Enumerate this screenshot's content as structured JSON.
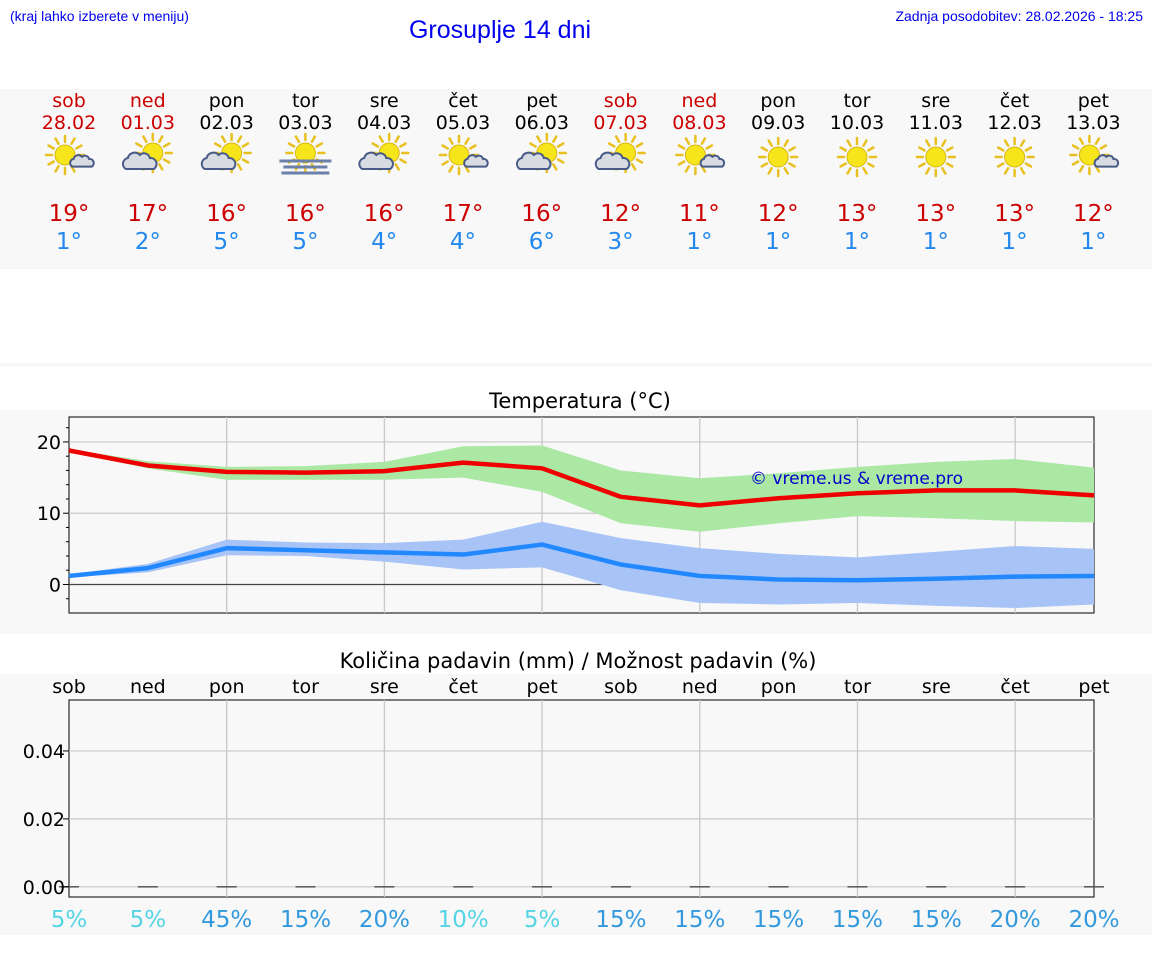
{
  "header": {
    "note": "(kraj lahko izberete v meniju)",
    "title": "Grosuplje 14 dni",
    "updated": "Zadnja posodobitev: 28.02.2026 - 18:25"
  },
  "colors": {
    "weekend": "#cc0000",
    "weekday": "#000000",
    "max_line": "#ee0000",
    "max_band": "#aae8a4",
    "min_line": "#2288ff",
    "min_band": "#a8c4f6",
    "pct_low": "#55d4e4",
    "pct_high": "#3399dd"
  },
  "forecast": [
    {
      "day": "sob",
      "date": "28.02",
      "weekend": true,
      "icon": "sun-cloud-icon",
      "max": "19°",
      "min": "1°"
    },
    {
      "day": "ned",
      "date": "01.03",
      "weekend": true,
      "icon": "cloud-sun-icon",
      "max": "17°",
      "min": "2°"
    },
    {
      "day": "pon",
      "date": "02.03",
      "weekend": false,
      "icon": "cloud-sun-icon",
      "max": "16°",
      "min": "5°"
    },
    {
      "day": "tor",
      "date": "03.03",
      "weekend": false,
      "icon": "fog-sun-icon",
      "max": "16°",
      "min": "5°"
    },
    {
      "day": "sre",
      "date": "04.03",
      "weekend": false,
      "icon": "cloud-sun-icon",
      "max": "16°",
      "min": "4°"
    },
    {
      "day": "čet",
      "date": "05.03",
      "weekend": false,
      "icon": "sun-cloud-icon",
      "max": "17°",
      "min": "4°"
    },
    {
      "day": "pet",
      "date": "06.03",
      "weekend": false,
      "icon": "cloud-sun-icon",
      "max": "16°",
      "min": "6°"
    },
    {
      "day": "sob",
      "date": "07.03",
      "weekend": true,
      "icon": "cloud-sun-icon",
      "max": "12°",
      "min": "3°"
    },
    {
      "day": "ned",
      "date": "08.03",
      "weekend": true,
      "icon": "sun-cloud-icon",
      "max": "11°",
      "min": "1°"
    },
    {
      "day": "pon",
      "date": "09.03",
      "weekend": false,
      "icon": "sun-icon",
      "max": "12°",
      "min": "1°"
    },
    {
      "day": "tor",
      "date": "10.03",
      "weekend": false,
      "icon": "sun-icon",
      "max": "13°",
      "min": "1°"
    },
    {
      "day": "sre",
      "date": "11.03",
      "weekend": false,
      "icon": "sun-icon",
      "max": "13°",
      "min": "1°"
    },
    {
      "day": "čet",
      "date": "12.03",
      "weekend": false,
      "icon": "sun-icon",
      "max": "13°",
      "min": "1°"
    },
    {
      "day": "pet",
      "date": "13.03",
      "weekend": false,
      "icon": "sun-cloud-icon",
      "max": "12°",
      "min": "1°"
    }
  ],
  "chart_data": [
    {
      "type": "line",
      "title": "Temperatura (°C)",
      "xlabel": "",
      "ylabel": "",
      "ylim": [
        -4,
        23.5
      ],
      "yticks": [
        0,
        10,
        20
      ],
      "yticks_minor": [
        -2,
        2,
        4,
        6,
        8,
        12,
        14,
        16,
        18,
        22
      ],
      "grid": true,
      "x": [
        0,
        1,
        2,
        3,
        4,
        5,
        6,
        7,
        8,
        9,
        10,
        11,
        12,
        13
      ],
      "watermark": "© vreme.us & vreme.pro",
      "series": [
        {
          "name": "max",
          "values": [
            18.8,
            16.7,
            15.8,
            15.7,
            15.9,
            17.1,
            16.3,
            12.3,
            11.1,
            12.1,
            12.8,
            13.2,
            13.2,
            12.5
          ],
          "band_low": [
            18.6,
            16.3,
            14.7,
            14.7,
            14.7,
            15.0,
            13.0,
            8.6,
            7.4,
            8.6,
            9.6,
            9.3,
            8.9,
            8.7
          ],
          "band_high": [
            19.0,
            17.3,
            16.5,
            16.6,
            17.2,
            19.4,
            19.5,
            16.0,
            14.9,
            15.6,
            16.5,
            17.2,
            17.6,
            16.4
          ]
        },
        {
          "name": "min",
          "values": [
            1.2,
            2.3,
            5.1,
            4.8,
            4.5,
            4.2,
            5.6,
            2.8,
            1.2,
            0.7,
            0.6,
            0.8,
            1.1,
            1.2
          ],
          "band_low": [
            1.0,
            1.7,
            4.1,
            4.0,
            3.2,
            2.1,
            2.4,
            -0.8,
            -2.6,
            -2.8,
            -2.6,
            -3.0,
            -3.3,
            -2.8
          ],
          "band_high": [
            1.4,
            2.9,
            6.3,
            5.9,
            5.8,
            6.3,
            8.8,
            6.5,
            5.1,
            4.3,
            3.8,
            4.6,
            5.4,
            5.0
          ]
        }
      ]
    },
    {
      "type": "bar",
      "title": "Količina padavin (mm) / Možnost padavin (%)",
      "categories": [
        "sob",
        "ned",
        "pon",
        "tor",
        "sre",
        "čet",
        "pet",
        "sob",
        "ned",
        "pon",
        "tor",
        "sre",
        "čet",
        "pet"
      ],
      "values": [
        0,
        0,
        0,
        0,
        0,
        0,
        0,
        0,
        0,
        0,
        0,
        0,
        0,
        0
      ],
      "ylim": [
        -0.003,
        0.055
      ],
      "yticks": [
        0.0,
        0.02,
        0.04
      ],
      "ytick_labels": [
        "0.00",
        "0.02",
        "0.04"
      ],
      "probability_labels": [
        "5%",
        "5%",
        "45%",
        "15%",
        "20%",
        "10%",
        "5%",
        "15%",
        "15%",
        "15%",
        "15%",
        "15%",
        "20%",
        "20%"
      ],
      "probability": [
        5,
        5,
        45,
        15,
        20,
        10,
        5,
        15,
        15,
        15,
        15,
        15,
        20,
        20
      ]
    }
  ]
}
